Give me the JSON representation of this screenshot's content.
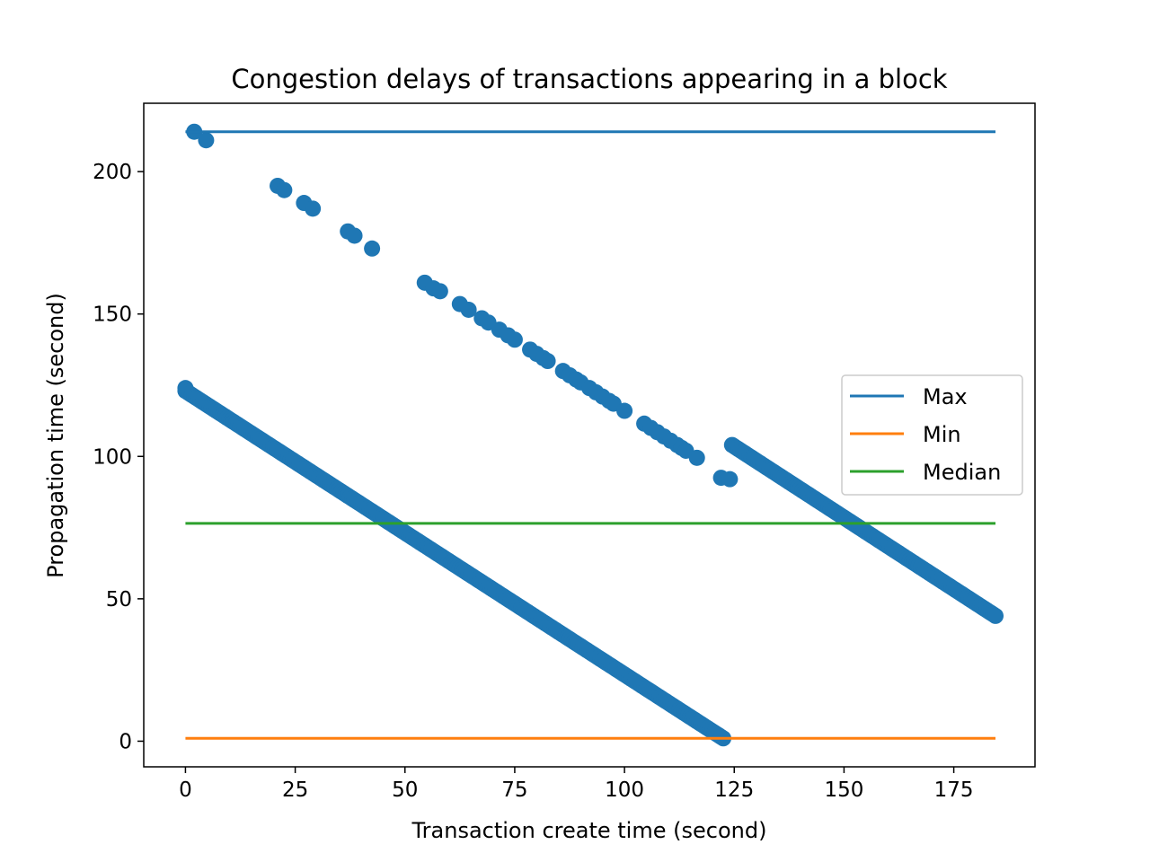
{
  "chart_data": {
    "type": "scatter",
    "title": "Congestion delays of transactions appearing in a block",
    "xlabel": "Transaction create time (second)",
    "ylabel": "Propagation time (second)",
    "xlim": [
      -9.5,
      193.5
    ],
    "ylim": [
      -9,
      224
    ],
    "x_ticks": [
      0,
      25,
      50,
      75,
      100,
      125,
      150,
      175
    ],
    "y_ticks": [
      0,
      50,
      100,
      150,
      200
    ],
    "grid": false,
    "legend_position": "center-right",
    "scatter_color": "#1f77b4",
    "scatter_points": [
      {
        "x": 0,
        "y": 124
      },
      {
        "x": 2,
        "y": 214
      },
      {
        "x": 4.7,
        "y": 211
      },
      {
        "x": 21,
        "y": 195
      },
      {
        "x": 22.5,
        "y": 193.5
      },
      {
        "x": 27,
        "y": 189
      },
      {
        "x": 29,
        "y": 187
      },
      {
        "x": 37,
        "y": 179
      },
      {
        "x": 38.5,
        "y": 177.5
      },
      {
        "x": 42.5,
        "y": 173
      },
      {
        "x": 54.5,
        "y": 161
      },
      {
        "x": 56.5,
        "y": 159
      },
      {
        "x": 58,
        "y": 158
      },
      {
        "x": 62.5,
        "y": 153.5
      },
      {
        "x": 64.5,
        "y": 151.5
      },
      {
        "x": 67.5,
        "y": 148.5
      },
      {
        "x": 69,
        "y": 147
      },
      {
        "x": 71.5,
        "y": 144.5
      },
      {
        "x": 73.5,
        "y": 142.5
      },
      {
        "x": 75,
        "y": 141
      },
      {
        "x": 78.5,
        "y": 137.5
      },
      {
        "x": 80,
        "y": 136
      },
      {
        "x": 81.5,
        "y": 134.5
      },
      {
        "x": 82.5,
        "y": 133.5
      },
      {
        "x": 86,
        "y": 130
      },
      {
        "x": 87.5,
        "y": 128.5
      },
      {
        "x": 89,
        "y": 127
      },
      {
        "x": 90,
        "y": 126
      },
      {
        "x": 92,
        "y": 124
      },
      {
        "x": 93.5,
        "y": 122.5
      },
      {
        "x": 95,
        "y": 121
      },
      {
        "x": 96.5,
        "y": 119.5
      },
      {
        "x": 97.5,
        "y": 118.5
      },
      {
        "x": 100,
        "y": 116
      },
      {
        "x": 104.5,
        "y": 111.5
      },
      {
        "x": 106,
        "y": 110
      },
      {
        "x": 107.5,
        "y": 108.5
      },
      {
        "x": 109,
        "y": 107
      },
      {
        "x": 110.5,
        "y": 105.5
      },
      {
        "x": 112,
        "y": 104
      },
      {
        "x": 113,
        "y": 103
      },
      {
        "x": 114,
        "y": 102
      },
      {
        "x": 116.5,
        "y": 99.5
      },
      {
        "x": 122,
        "y": 92.5
      },
      {
        "x": 124,
        "y": 92
      }
    ],
    "scatter_segments": [
      {
        "x_start": 0,
        "y_start": 123,
        "x_end": 122.5,
        "y_end": 1,
        "step": 0.5
      },
      {
        "x_start": 124.5,
        "y_start": 104,
        "x_end": 184.5,
        "y_end": 44,
        "step": 0.5
      }
    ],
    "series": [
      {
        "name": "Max",
        "color": "#1f77b4",
        "x": [
          0,
          184.5
        ],
        "y": [
          214,
          214
        ]
      },
      {
        "name": "Min",
        "color": "#ff7f0e",
        "x": [
          0,
          184.5
        ],
        "y": [
          1,
          1
        ]
      },
      {
        "name": "Median",
        "color": "#2ca02c",
        "x": [
          0,
          184.5
        ],
        "y": [
          76.5,
          76.5
        ]
      }
    ]
  }
}
